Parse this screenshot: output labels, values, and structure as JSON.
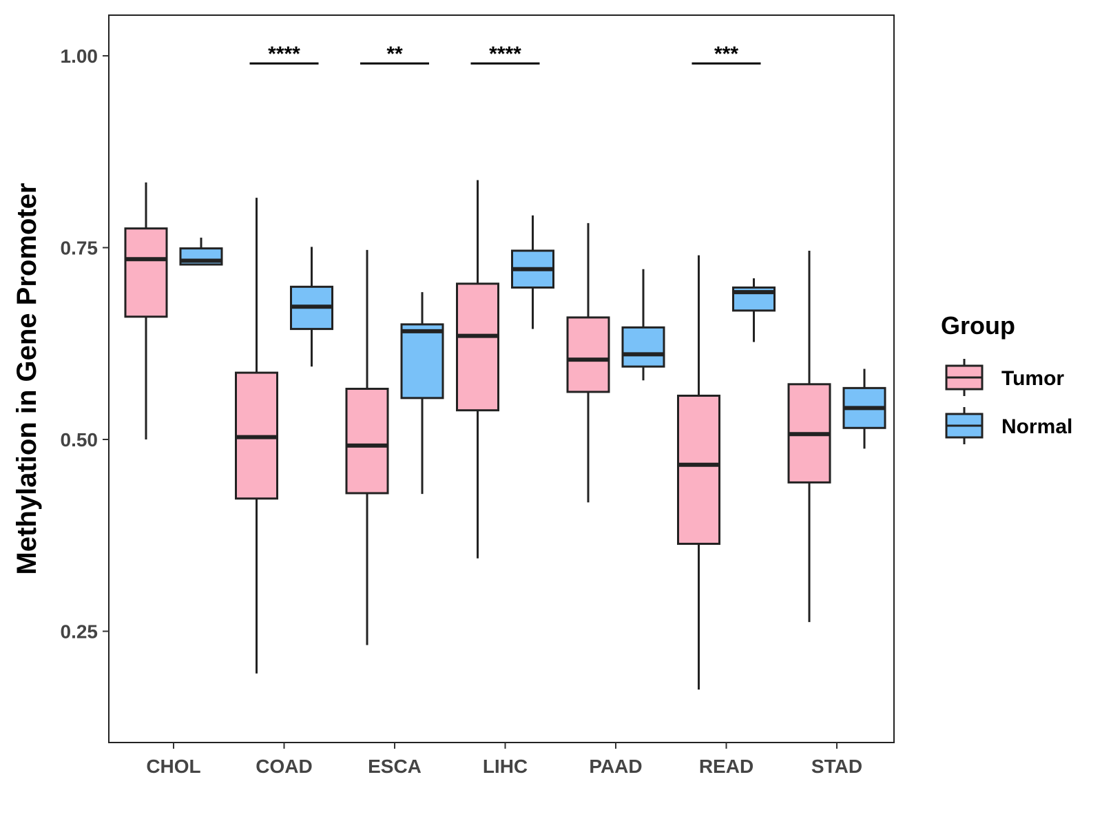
{
  "chart_data": {
    "type": "boxplot",
    "title": "",
    "xlabel": "",
    "ylabel": "Methylation in Gene Promoter",
    "ylim": [
      0.105,
      1.053
    ],
    "yticks": [
      0.25,
      0.5,
      0.75,
      1.0
    ],
    "ytick_labels": [
      "0.25",
      "0.50",
      "0.75",
      "1.00"
    ],
    "categories": [
      "CHOL",
      "COAD",
      "ESCA",
      "LIHC",
      "PAAD",
      "READ",
      "STAD"
    ],
    "grid": false,
    "legend": {
      "title": "Group",
      "position": "right"
    },
    "series": [
      {
        "name": "Tumor",
        "color": "#FBB1C3",
        "boxes": [
          {
            "category": "CHOL",
            "whisker_low": 0.5,
            "q1": 0.66,
            "median": 0.735,
            "q3": 0.775,
            "whisker_high": 0.835
          },
          {
            "category": "COAD",
            "whisker_low": 0.195,
            "q1": 0.423,
            "median": 0.503,
            "q3": 0.587,
            "whisker_high": 0.815
          },
          {
            "category": "ESCA",
            "whisker_low": 0.232,
            "q1": 0.43,
            "median": 0.492,
            "q3": 0.566,
            "whisker_high": 0.747
          },
          {
            "category": "LIHC",
            "whisker_low": 0.345,
            "q1": 0.538,
            "median": 0.635,
            "q3": 0.703,
            "whisker_high": 0.838
          },
          {
            "category": "PAAD",
            "whisker_low": 0.418,
            "q1": 0.562,
            "median": 0.604,
            "q3": 0.659,
            "whisker_high": 0.782
          },
          {
            "category": "READ",
            "whisker_low": 0.174,
            "q1": 0.364,
            "median": 0.467,
            "q3": 0.557,
            "whisker_high": 0.74
          },
          {
            "category": "STAD",
            "whisker_low": 0.262,
            "q1": 0.444,
            "median": 0.507,
            "q3": 0.572,
            "whisker_high": 0.746
          }
        ]
      },
      {
        "name": "Normal",
        "color": "#79C1F8",
        "boxes": [
          {
            "category": "CHOL",
            "whisker_low": 0.728,
            "q1": 0.728,
            "median": 0.733,
            "q3": 0.749,
            "whisker_high": 0.763
          },
          {
            "category": "COAD",
            "whisker_low": 0.595,
            "q1": 0.644,
            "median": 0.673,
            "q3": 0.699,
            "whisker_high": 0.751
          },
          {
            "category": "ESCA",
            "whisker_low": 0.429,
            "q1": 0.554,
            "median": 0.641,
            "q3": 0.65,
            "whisker_high": 0.692
          },
          {
            "category": "LIHC",
            "whisker_low": 0.644,
            "q1": 0.698,
            "median": 0.722,
            "q3": 0.746,
            "whisker_high": 0.792
          },
          {
            "category": "PAAD",
            "whisker_low": 0.577,
            "q1": 0.595,
            "median": 0.611,
            "q3": 0.646,
            "whisker_high": 0.722
          },
          {
            "category": "READ",
            "whisker_low": 0.627,
            "q1": 0.668,
            "median": 0.692,
            "q3": 0.698,
            "whisker_high": 0.71
          },
          {
            "category": "STAD",
            "whisker_low": 0.488,
            "q1": 0.515,
            "median": 0.541,
            "q3": 0.567,
            "whisker_high": 0.592
          }
        ]
      }
    ],
    "annotations": [
      {
        "category": "COAD",
        "label": "****",
        "y": 0.99
      },
      {
        "category": "ESCA",
        "label": "**",
        "y": 0.99
      },
      {
        "category": "LIHC",
        "label": "****",
        "y": 0.99
      },
      {
        "category": "READ",
        "label": "***",
        "y": 0.99
      }
    ]
  }
}
